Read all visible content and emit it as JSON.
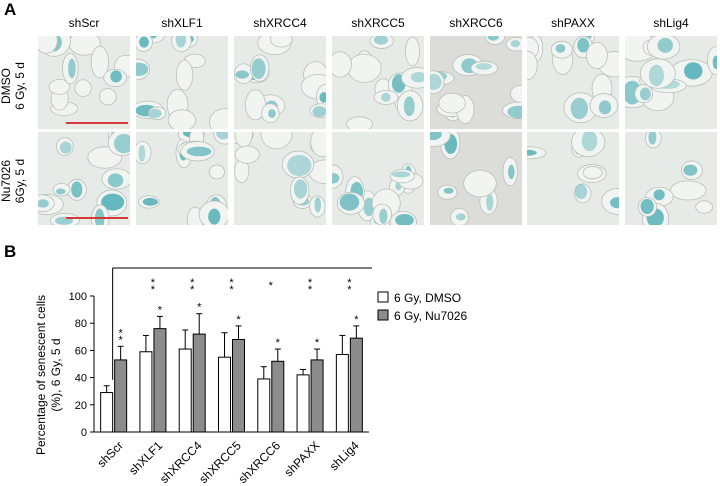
{
  "panel_a": {
    "letter": "A",
    "conditions": [
      "shScr",
      "shXLF1",
      "shXRCC4",
      "shXRCC5",
      "shXRCC6",
      "shPAXX",
      "shLig4"
    ],
    "rows": [
      {
        "line1": "DMSO",
        "line2": "6 Gy, 5 d"
      },
      {
        "line1": "Nu7026",
        "line2": "6Gy, 5 d"
      }
    ],
    "stain_color": "#3fa8b0",
    "scale_bar_color": "#d43a3a"
  },
  "panel_b": {
    "letter": "B"
  },
  "chart_data": {
    "type": "bar",
    "categories": [
      "shScr",
      "shXLF1",
      "shXRCC4",
      "shXRCC5",
      "shXRCC6",
      "shPAXX",
      "shLig4"
    ],
    "series": [
      {
        "name": "6 Gy, DMSO",
        "color": "#ffffff",
        "values": [
          29,
          59,
          61,
          55,
          39,
          42,
          57
        ],
        "errors": [
          5,
          12,
          14,
          18,
          9,
          4,
          14
        ],
        "markers": [
          "",
          "",
          "",
          "",
          "",
          "",
          ""
        ]
      },
      {
        "name": "6 Gy, Nu7026",
        "color": "#8c8c8c",
        "values": [
          53,
          76,
          72,
          68,
          52,
          53,
          69
        ],
        "errors": [
          10,
          9,
          15,
          10,
          9,
          8,
          9
        ],
        "markers": [
          "**",
          "*",
          "*",
          "*",
          "*",
          "*",
          "*"
        ]
      }
    ],
    "comparison_markers": [
      "**",
      "**",
      "**",
      "*",
      "**",
      "**"
    ],
    "ylabel_line1": "Percentage of senescent cells",
    "ylabel_line2": "(%), 6 Gy, 5 d",
    "ylim": [
      0,
      100
    ],
    "yticks": [
      0,
      20,
      40,
      60,
      80,
      100
    ],
    "legend_position": "top-right",
    "grid": false
  }
}
